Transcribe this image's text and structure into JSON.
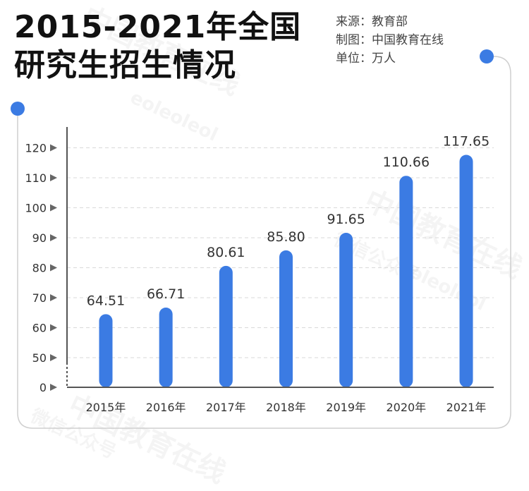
{
  "title_line1": "2015-2021年全国",
  "title_line2": "研究生招生情况",
  "meta": {
    "source": "来源：教育部",
    "maker": "制图：中国教育在线",
    "unit": "单位：万人"
  },
  "watermark": {
    "brand": "中国教育在线",
    "account": "微信公众号",
    "domain": "eoleoleol"
  },
  "colors": {
    "bar": "#3b7be3",
    "dot": "#3b7be3",
    "axis": "#555555",
    "grid": "#d9d9d9"
  },
  "chart_data": {
    "type": "bar",
    "categories": [
      "2015年",
      "2016年",
      "2017年",
      "2018年",
      "2019年",
      "2020年",
      "2021年"
    ],
    "values": [
      64.51,
      66.71,
      80.61,
      85.8,
      91.65,
      110.66,
      117.65
    ],
    "data_labels": [
      "64.51",
      "66.71",
      "80.61",
      "85.80",
      "91.65",
      "110.66",
      "117.65"
    ],
    "y_ticks": [
      "0",
      "50",
      "60",
      "70",
      "80",
      "90",
      "100",
      "110",
      "120"
    ],
    "ylim": [
      0,
      120
    ],
    "y_axis_break": true,
    "grid": true
  }
}
